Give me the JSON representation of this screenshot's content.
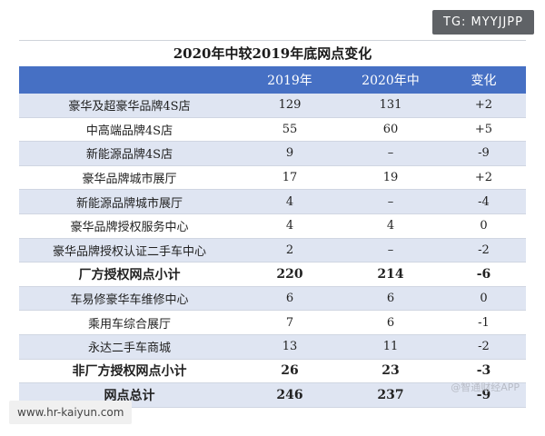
{
  "watermarks": {
    "top_right": "TG: MYYJJPP",
    "bottom_left": "www.hr-kaiyun.com",
    "bottom_right": "@智通财经APP"
  },
  "table": {
    "title": "2020年中较2019年底网点变化",
    "headers": [
      "",
      "2019年",
      "2020年中",
      "变化"
    ],
    "rows": [
      {
        "label": "豪华及超豪华品牌4S店",
        "y2019": "129",
        "y2020": "131",
        "change": "+2",
        "bold": false
      },
      {
        "label": "中高端品牌4S店",
        "y2019": "55",
        "y2020": "60",
        "change": "+5",
        "bold": false
      },
      {
        "label": "新能源品牌4S店",
        "y2019": "9",
        "y2020": "–",
        "change": "-9",
        "bold": false
      },
      {
        "label": "豪华品牌城市展厅",
        "y2019": "17",
        "y2020": "19",
        "change": "+2",
        "bold": false
      },
      {
        "label": "新能源品牌城市展厅",
        "y2019": "4",
        "y2020": "–",
        "change": "-4",
        "bold": false
      },
      {
        "label": "豪华品牌授权服务中心",
        "y2019": "4",
        "y2020": "4",
        "change": "0",
        "bold": false
      },
      {
        "label": "豪华品牌授权认证二手车中心",
        "y2019": "2",
        "y2020": "–",
        "change": "-2",
        "bold": false
      },
      {
        "label": "厂方授权网点小计",
        "y2019": "220",
        "y2020": "214",
        "change": "-6",
        "bold": true
      },
      {
        "label": "车易修豪华车维修中心",
        "y2019": "6",
        "y2020": "6",
        "change": "0",
        "bold": false
      },
      {
        "label": "乘用车综合展厅",
        "y2019": "7",
        "y2020": "6",
        "change": "-1",
        "bold": false
      },
      {
        "label": "永达二手车商城",
        "y2019": "13",
        "y2020": "11",
        "change": "-2",
        "bold": false
      },
      {
        "label": "非厂方授权网点小计",
        "y2019": "26",
        "y2020": "23",
        "change": "-3",
        "bold": true
      },
      {
        "label": "网点总计",
        "y2019": "246",
        "y2020": "237",
        "change": "-9",
        "bold": true
      }
    ]
  }
}
